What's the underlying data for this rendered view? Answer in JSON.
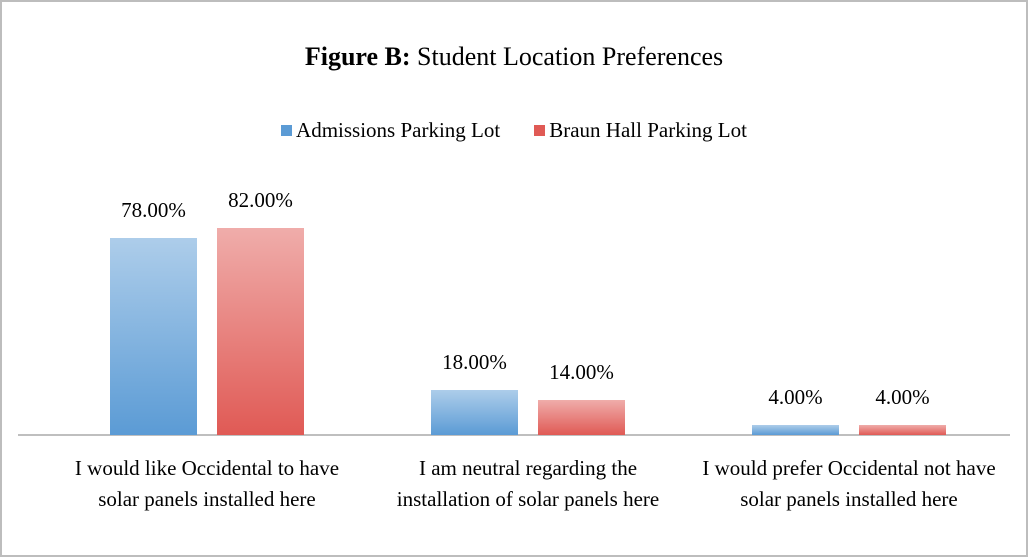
{
  "chart_data": {
    "type": "bar",
    "title_bold": "Figure B:",
    "title": "Student Location Preferences",
    "categories": [
      "I would like Occidental to have solar panels installed here",
      "I am neutral regarding the installation of solar panels here",
      "I would prefer Occidental not have solar panels installed here"
    ],
    "series": [
      {
        "name": "Admissions Parking Lot",
        "color": "#5b9bd5",
        "values": [
          78,
          18,
          4
        ],
        "value_labels": [
          "78.00%",
          "18.00%",
          "4.00%"
        ]
      },
      {
        "name": "Braun Hall Parking Lot",
        "color": "#e05a55",
        "values": [
          82,
          14,
          4
        ],
        "value_labels": [
          "82.00%",
          "14.00%",
          "4.00%"
        ]
      }
    ],
    "legend": "top"
  }
}
